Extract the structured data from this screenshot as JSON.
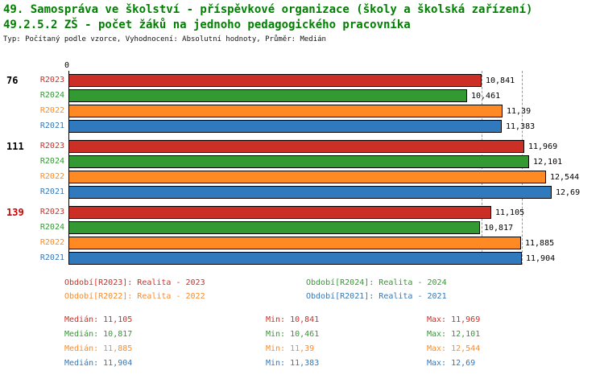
{
  "header": {
    "line1": "49. Samospráva ve školství - příspěvkové organizace (školy a školská zařízení)",
    "line2": "49.2.5.2 ZŠ - počet žáků na jednoho pedagogického pracovníka",
    "meta": "Typ: Počítaný podle vzorce, Vyhodnocení: Absolutní hodnoty, Průměr: Medián",
    "title_color": "#008000"
  },
  "colors": {
    "series": {
      "R2023": "#cc2f26",
      "R2024": "#339933",
      "R2022": "#ff8a24",
      "R2021": "#3079bd"
    },
    "highlight_group_label": "#cc0000",
    "default_group_label": "#000000",
    "value_label": "#000000",
    "gridline": "#999999"
  },
  "chart_data": {
    "type": "bar",
    "orientation": "horizontal",
    "title": "49.2.5.2 ZŠ - počet žáků na jednoho pedagogického pracovníka",
    "xlabel": "",
    "ylabel": "",
    "xlim": [
      0,
      12.69
    ],
    "zero_label": "0",
    "value_label_color": "#000000",
    "gridlines": [
      10.85,
      11.9
    ],
    "series_order": [
      "R2023",
      "R2024",
      "R2022",
      "R2021"
    ],
    "groups": [
      {
        "label": "76",
        "label_color": "#000000",
        "bars": [
          {
            "series": "R2023",
            "value": 10.841,
            "display": "10,841"
          },
          {
            "series": "R2024",
            "value": 10.461,
            "display": "10,461"
          },
          {
            "series": "R2022",
            "value": 11.39,
            "display": "11,39"
          },
          {
            "series": "R2021",
            "value": 11.383,
            "display": "11,383"
          }
        ]
      },
      {
        "label": "111",
        "label_color": "#000000",
        "bars": [
          {
            "series": "R2023",
            "value": 11.969,
            "display": "11,969"
          },
          {
            "series": "R2024",
            "value": 12.101,
            "display": "12,101"
          },
          {
            "series": "R2022",
            "value": 12.544,
            "display": "12,544"
          },
          {
            "series": "R2021",
            "value": 12.69,
            "display": "12,69"
          }
        ]
      },
      {
        "label": "139",
        "label_color": "#cc0000",
        "bars": [
          {
            "series": "R2023",
            "value": 11.105,
            "display": "11,105"
          },
          {
            "series": "R2024",
            "value": 10.817,
            "display": "10,817"
          },
          {
            "series": "R2022",
            "value": 11.885,
            "display": "11,885"
          },
          {
            "series": "R2021",
            "value": 11.904,
            "display": "11,904"
          }
        ]
      }
    ]
  },
  "legend": {
    "items": [
      {
        "series": "R2023",
        "text": "Období[R2023]: Realita - 2023"
      },
      {
        "series": "R2024",
        "text": "Období[R2024]: Realita - 2024"
      },
      {
        "series": "R2022",
        "text": "Období[R2022]: Realita - 2022"
      },
      {
        "series": "R2021",
        "text": "Období[R2021]: Realita - 2021"
      }
    ]
  },
  "stats": {
    "rows": [
      {
        "series": "R2023",
        "median_label": "Medián:",
        "median": "11,105",
        "min_label": "Min:",
        "min": "10,841",
        "max_label": "Max:",
        "max": "11,969"
      },
      {
        "series": "R2024",
        "median_label": "Medián:",
        "median": "10,817",
        "min_label": "Min:",
        "min": "10,461",
        "max_label": "Max:",
        "max": "12,101"
      },
      {
        "series": "R2022",
        "median_label": "Medián:",
        "median": "11,885",
        "min_label": "Min:",
        "min": "11,39",
        "max_label": "Max:",
        "max": "12,544"
      },
      {
        "series": "R2021",
        "median_label": "Medián:",
        "median": "11,904",
        "min_label": "Min:",
        "min": "11,383",
        "max_label": "Max:",
        "max": "12,69"
      }
    ]
  }
}
